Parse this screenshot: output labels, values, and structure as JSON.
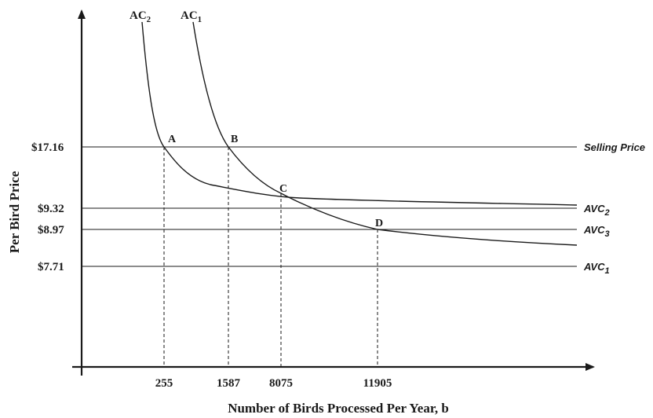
{
  "chart_data": {
    "type": "line",
    "xlabel": "Number of Birds Processed Per Year, b",
    "ylabel": "Per Bird Price",
    "x_ticks": [
      "255",
      "1587",
      "8075",
      "11905"
    ],
    "y_ticks": [
      "$17.16",
      "$9.32",
      "$8.97",
      "$7.71"
    ],
    "horizontal_lines": [
      {
        "name": "Selling Price",
        "value": 17.16
      },
      {
        "name": "AVC",
        "sub": "2",
        "value": 9.32
      },
      {
        "name": "AVC",
        "sub": "3",
        "value": 8.97
      },
      {
        "name": "AVC",
        "sub": "1",
        "value": 7.71
      }
    ],
    "curves": [
      {
        "name": "AC",
        "sub": "2"
      },
      {
        "name": "AC",
        "sub": "1"
      }
    ],
    "points": [
      {
        "label": "A",
        "x": "255",
        "y": 17.16
      },
      {
        "label": "B",
        "x": "1587",
        "y": 17.16
      },
      {
        "label": "C",
        "x": "8075"
      },
      {
        "label": "D",
        "x": "11905",
        "y": 8.97
      }
    ]
  }
}
